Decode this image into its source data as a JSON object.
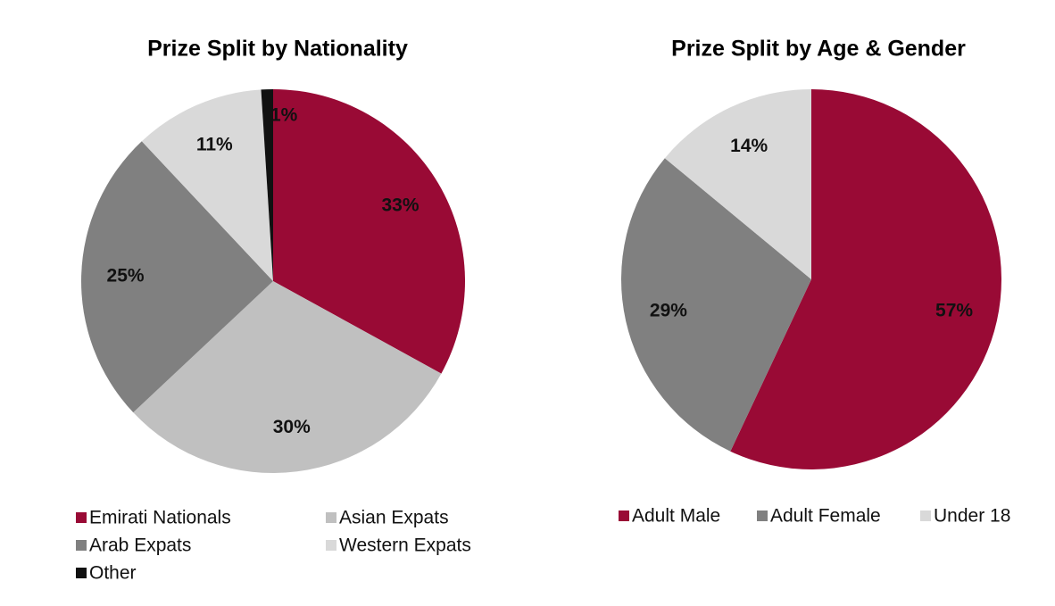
{
  "chart_data": [
    {
      "type": "pie",
      "title": "Prize Split by Nationality",
      "categories": [
        "Emirati Nationals",
        "Asian Expats",
        "Arab Expats",
        "Western Expats",
        "Other"
      ],
      "values": [
        33,
        30,
        25,
        11,
        1
      ],
      "value_labels": [
        "33%",
        "30%",
        "25%",
        "11%",
        "1%"
      ],
      "colors": [
        "#990a35",
        "#c0c0c0",
        "#808080",
        "#d9d9d9",
        "#111111"
      ]
    },
    {
      "type": "pie",
      "title": "Prize Split by Age & Gender",
      "categories": [
        "Adult Male",
        "Adult Female",
        "Under 18"
      ],
      "values": [
        57,
        29,
        14
      ],
      "value_labels": [
        "57%",
        "29%",
        "14%"
      ],
      "colors": [
        "#990a35",
        "#808080",
        "#d9d9d9"
      ]
    }
  ]
}
